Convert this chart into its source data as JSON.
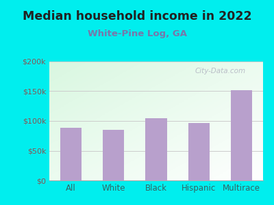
{
  "title": "Median household income in 2022",
  "subtitle": "White-Pine Log, GA",
  "categories": [
    "All",
    "White",
    "Black",
    "Hispanic",
    "Multirace"
  ],
  "values": [
    88000,
    85000,
    105000,
    97000,
    152000
  ],
  "bar_color": "#b8a0cc",
  "title_fontsize": 12.5,
  "title_color": "#222222",
  "subtitle_fontsize": 9.5,
  "subtitle_color": "#7777aa",
  "tick_color_x": "#336666",
  "tick_color_y": "#885555",
  "background_outer": "#00eeee",
  "ylim": [
    0,
    200000
  ],
  "yticks": [
    0,
    50000,
    100000,
    150000,
    200000
  ],
  "ytick_labels": [
    "$0",
    "$50k",
    "$100k",
    "$150k",
    "$200k"
  ],
  "watermark": "City-Data.com",
  "grid_color": "#cccccc"
}
